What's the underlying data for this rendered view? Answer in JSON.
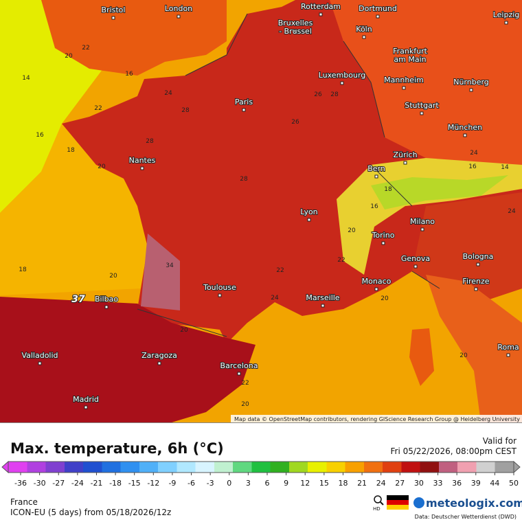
{
  "map": {
    "cities": [
      {
        "lines": [
          "Bristol"
        ]
      },
      {
        "lines": [
          "London"
        ]
      },
      {
        "lines": [
          "Rotterdam"
        ]
      },
      {
        "lines": [
          "Dortmund"
        ]
      },
      {
        "lines": [
          "Bruxelles",
          "- Brussel"
        ]
      },
      {
        "lines": [
          "Köln"
        ]
      },
      {
        "lines": [
          "Leipzig"
        ]
      },
      {
        "lines": [
          "Frankfurt",
          "am Main"
        ]
      },
      {
        "lines": [
          "Luxembourg"
        ]
      },
      {
        "lines": [
          "Mannheim"
        ]
      },
      {
        "lines": [
          "Nürnberg"
        ]
      },
      {
        "lines": [
          "Paris"
        ]
      },
      {
        "lines": [
          "Stuttgart"
        ]
      },
      {
        "lines": [
          "München"
        ]
      },
      {
        "lines": [
          "Nantes"
        ]
      },
      {
        "lines": [
          "Zürich"
        ]
      },
      {
        "lines": [
          "Bern"
        ]
      },
      {
        "lines": [
          "Lyon"
        ]
      },
      {
        "lines": [
          "Milano"
        ]
      },
      {
        "lines": [
          "Torino"
        ]
      },
      {
        "lines": [
          "Genova"
        ]
      },
      {
        "lines": [
          "Bologna"
        ]
      },
      {
        "lines": [
          "Toulouse"
        ]
      },
      {
        "lines": [
          "Monaco"
        ]
      },
      {
        "lines": [
          "Firenze"
        ]
      },
      {
        "lines": [
          "Marseille"
        ]
      },
      {
        "lines": [
          "Bilbao"
        ]
      },
      {
        "lines": [
          "Valladolid"
        ]
      },
      {
        "lines": [
          "Zaragoza"
        ]
      },
      {
        "lines": [
          "Barcelona"
        ]
      },
      {
        "lines": [
          "Roma"
        ]
      },
      {
        "lines": [
          "Madrid"
        ]
      }
    ],
    "temperatures": [
      22,
      20,
      14,
      16,
      16,
      18,
      20,
      22,
      24,
      28,
      28,
      26,
      28,
      26,
      28,
      24,
      16,
      14,
      18,
      16,
      20,
      22,
      20,
      34,
      37,
      18,
      20,
      22,
      24,
      20,
      22,
      20,
      20,
      24
    ],
    "attribution": "Map data © OpenStreetMap contributors, rendering GIScience Research Group @ Heidelberg University"
  },
  "header": {
    "title": "Max. temperature, 6h (°C)",
    "valid_label": "Valid for",
    "valid_time": "Fri 05/22/2026, 08:00pm CEST"
  },
  "colorbar": {
    "ticks": [
      -36,
      -30,
      -27,
      -24,
      -21,
      -18,
      -15,
      -12,
      -9,
      -6,
      -3,
      0,
      3,
      6,
      9,
      12,
      15,
      18,
      21,
      24,
      27,
      30,
      33,
      36,
      39,
      44,
      50
    ],
    "colors": [
      "#e040f0",
      "#b040e0",
      "#8040d0",
      "#4040c8",
      "#2050d0",
      "#2070e0",
      "#3090f0",
      "#50b0f8",
      "#80d0ff",
      "#b0e8ff",
      "#d8f4ff",
      "#c0f0d0",
      "#60d880",
      "#20c040",
      "#30b020",
      "#a0d820",
      "#e8f000",
      "#f8d000",
      "#f8a000",
      "#f07010",
      "#e04010",
      "#c01010",
      "#901010",
      "#c06080",
      "#f0a0b0",
      "#d0d0d0",
      "#a0a0a0"
    ]
  },
  "footer": {
    "region": "France",
    "model": "ICON-EU (5 days) from 05/18/2026/12z",
    "hd_label": "HD",
    "brand": "meteologix.com",
    "source": "Data: Deutscher Wetterdienst (DWD)"
  }
}
